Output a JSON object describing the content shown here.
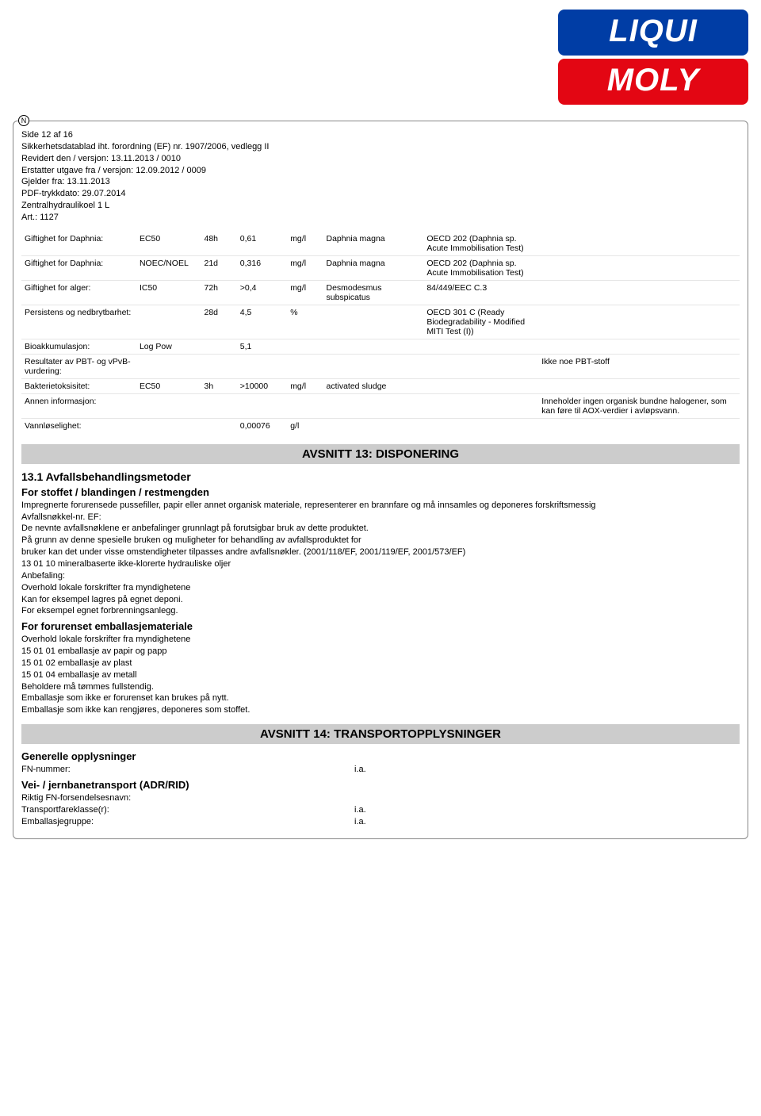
{
  "logo": {
    "line1": "LIQUI",
    "line2": "MOLY"
  },
  "n_marker": "N",
  "header": {
    "page_of": "Side 12 af 16",
    "doc_title": "Sikkerhetsdatablad iht. forordning (EF) nr. 1907/2006, vedlegg II",
    "revised": "Revidert den / versjon: 13.11.2013 / 0010",
    "replaces": "Erstatter utgave fra / versjon: 12.09.2012 / 0009",
    "valid_from": "Gjelder fra: 13.11.2013",
    "pdf_date": "PDF-trykkdato: 29.07.2014",
    "product": "Zentralhydraulikoel 1 L",
    "art": "Art.: 1127"
  },
  "table": {
    "rows": [
      {
        "p": "Giftighet for Daphnia:",
        "m": "EC50",
        "t": "48h",
        "v": "0,61",
        "u": "mg/l",
        "s": "Daphnia magna",
        "g": "OECD 202 (Daphnia sp. Acute Immobilisation Test)",
        "n": ""
      },
      {
        "p": "Giftighet for Daphnia:",
        "m": "NOEC/NOEL",
        "t": "21d",
        "v": "0,316",
        "u": "mg/l",
        "s": "Daphnia magna",
        "g": "OECD 202 (Daphnia sp. Acute Immobilisation Test)",
        "n": ""
      },
      {
        "p": "Giftighet for alger:",
        "m": "IC50",
        "t": "72h",
        "v": ">0,4",
        "u": "mg/l",
        "s": "Desmodesmus subspicatus",
        "g": "84/449/EEC C.3",
        "n": ""
      },
      {
        "p": "Persistens og nedbrytbarhet:",
        "m": "",
        "t": "28d",
        "v": "4,5",
        "u": "%",
        "s": "",
        "g": "OECD 301 C (Ready Biodegradability - Modified MITI Test (I))",
        "n": ""
      },
      {
        "p": "Bioakkumulasjon:",
        "m": "Log Pow",
        "t": "",
        "v": "5,1",
        "u": "",
        "s": "",
        "g": "",
        "n": ""
      },
      {
        "p": "Resultater av PBT- og vPvB-vurdering:",
        "m": "",
        "t": "",
        "v": "",
        "u": "",
        "s": "",
        "g": "",
        "n": "Ikke noe PBT-stoff"
      },
      {
        "p": "Bakterietoksisitet:",
        "m": "EC50",
        "t": "3h",
        "v": ">10000",
        "u": "mg/l",
        "s": "activated sludge",
        "g": "",
        "n": ""
      },
      {
        "p": "Annen informasjon:",
        "m": "",
        "t": "",
        "v": "",
        "u": "",
        "s": "",
        "g": "",
        "n": "Inneholder ingen organisk bundne halogener, som kan føre til AOX-verdier i avløpsvann."
      },
      {
        "p": "Vannløselighet:",
        "m": "",
        "t": "",
        "v": "0,00076",
        "u": "g/l",
        "s": "",
        "g": "",
        "n": ""
      }
    ]
  },
  "section13": {
    "banner": "AVSNITT 13: DISPONERING",
    "h_methods": "13.1 Avfallsbehandlingsmetoder",
    "h_substance": "For stoffet / blandingen / restmengden",
    "p1": "Impregnerte forurensede pussefiller, papir eller annet organisk materiale, representerer en brannfare og må innsamles og deponeres forskriftsmessig",
    "p2": "Avfallsnøkkel-nr. EF:",
    "p3": "De nevnte avfallsnøklene er anbefalinger grunnlagt på forutsigbar bruk av dette produktet.",
    "p4": "På grunn av denne spesielle bruken og muligheter for behandling av avfallsproduktet for",
    "p5": "bruker kan det under visse omstendigheter tilpasses andre avfallsnøkler. (2001/118/EF, 2001/119/EF, 2001/573/EF)",
    "p6": "13 01 10 mineralbaserte ikke-klorerte hydrauliske oljer",
    "p7": "Anbefaling:",
    "p8": "Overhold lokale forskrifter fra myndighetene",
    "p9": "Kan for eksempel lagres på egnet deponi.",
    "p10": "For eksempel egnet forbrenningsanlegg.",
    "h_packaging": "For forurenset emballasjemateriale",
    "pk1": "Overhold lokale forskrifter fra myndighetene",
    "pk2": "15 01 01 emballasje av papir og papp",
    "pk3": "15 01 02 emballasje av plast",
    "pk4": "15 01 04 emballasje av metall",
    "pk5": "Beholdere må tømmes fullstendig.",
    "pk6": "Emballasje som ikke er forurenset kan brukes på nytt.",
    "pk7": "Emballasje som ikke kan rengjøres, deponeres som stoffet."
  },
  "section14": {
    "banner": "AVSNITT 14: TRANSPORTOPPLYSNINGER",
    "h_general": "Generelle opplysninger",
    "fn_label": "FN-nummer:",
    "fn_value": "i.a.",
    "h_road": "Vei- / jernbanetransport (ADR/RID)",
    "ship_label": "Riktig FN-forsendelsesnavn:",
    "class_label": "Transportfareklasse(r):",
    "class_value": "i.a.",
    "group_label": "Emballasjegruppe:",
    "group_value": "i.a."
  }
}
